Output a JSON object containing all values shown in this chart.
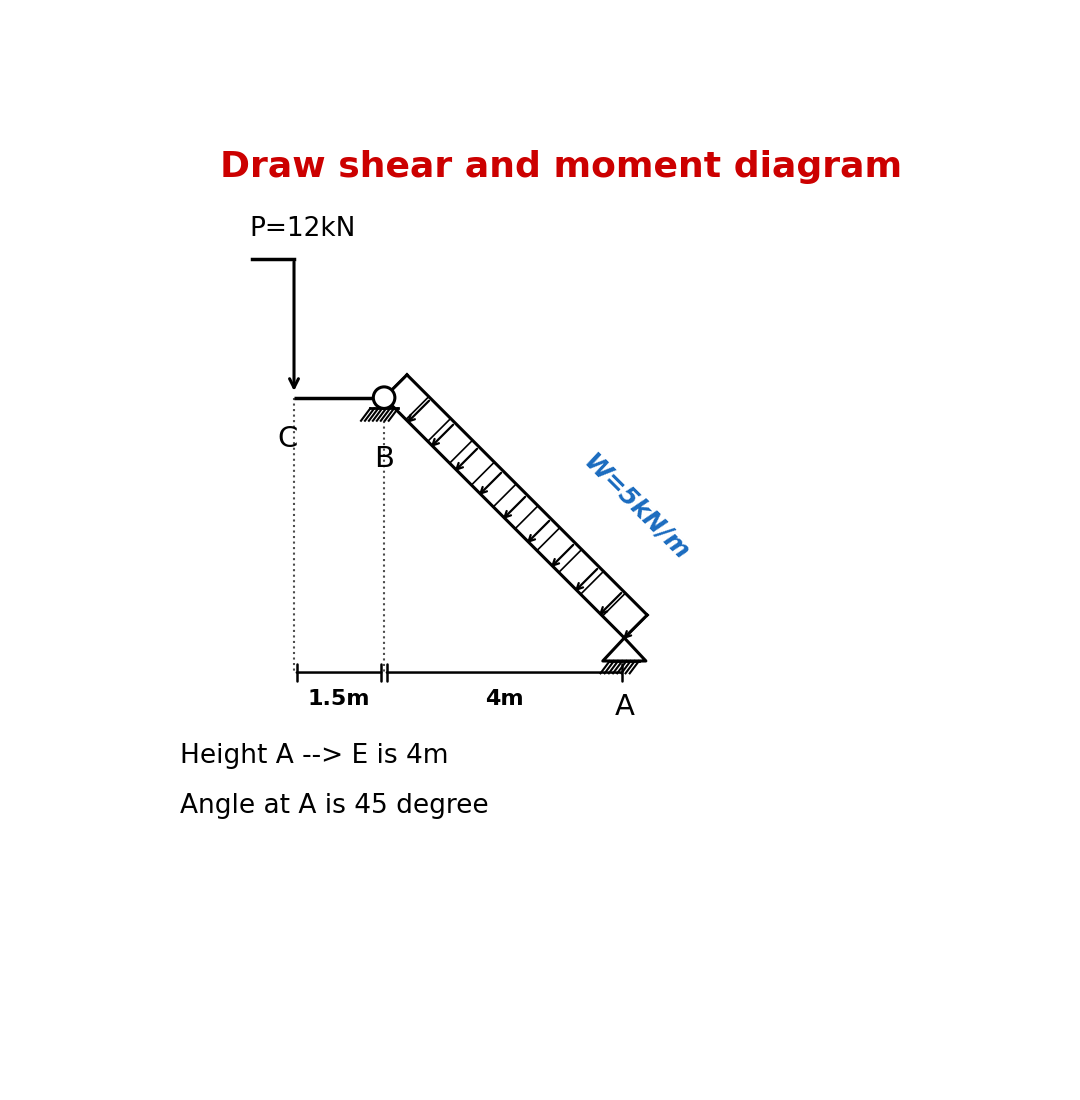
{
  "title": "Draw shear and moment diagram",
  "title_color": "#cc0000",
  "title_fontsize": 26,
  "bg_color": "#ffffff",
  "label_P": "P=12kN",
  "label_W": "W=5kN/m",
  "label_C": "C",
  "label_B": "B",
  "label_A": "A",
  "label_1p5m": "1.5m",
  "label_4m": "4m",
  "note_line1": "Height A --> E is 4m",
  "note_line2": "Angle at A is 45 degree",
  "beam_color": "#000000",
  "load_color": "#000000",
  "W_label_color": "#1a6bbf",
  "note_fontsize": 19,
  "label_fontsize": 18,
  "dim_fontsize": 16
}
